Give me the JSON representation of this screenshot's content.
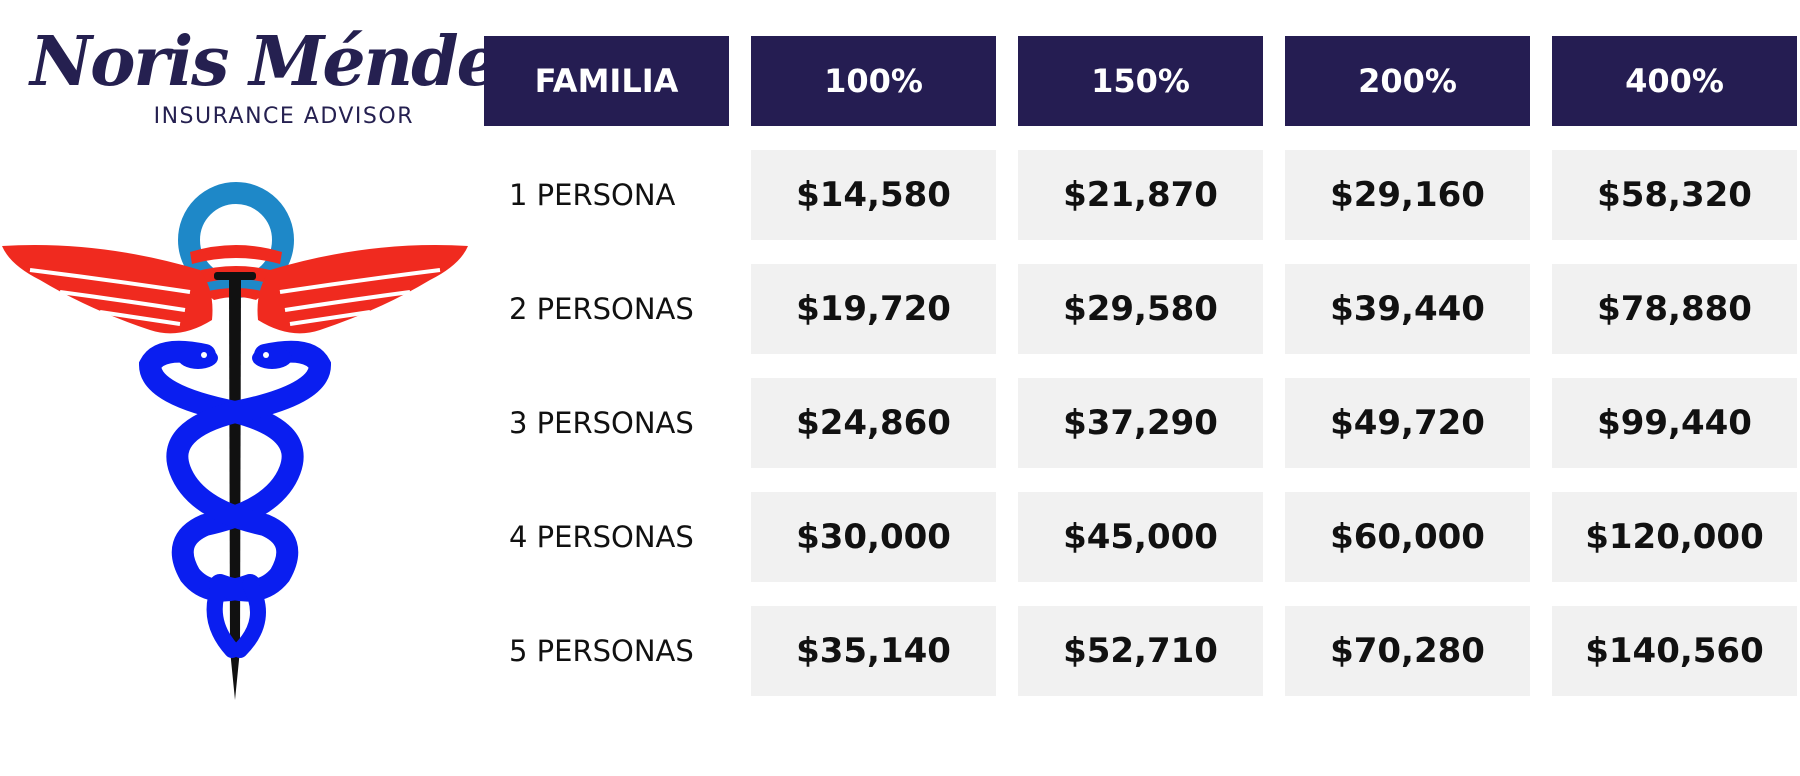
{
  "brand": {
    "name": "Noris Méndez",
    "subtitle": "INSURANCE ADVISOR",
    "emblem_icon": "caduceus-icon",
    "colors": {
      "navy": "#251d52",
      "red": "#f02a1f",
      "blue": "#0a1ef0",
      "sky": "#1e88c8"
    }
  },
  "table": {
    "headers": [
      "FAMILIA",
      "100%",
      "150%",
      "200%",
      "400%"
    ],
    "rows": [
      {
        "label": "1 PERSONA",
        "values": [
          "$14,580",
          "$21,870",
          "$29,160",
          "$58,320"
        ]
      },
      {
        "label": "2 PERSONAS",
        "values": [
          "$19,720",
          "$29,580",
          "$39,440",
          "$78,880"
        ]
      },
      {
        "label": "3 PERSONAS",
        "values": [
          "$24,860",
          "$37,290",
          "$49,720",
          "$99,440"
        ]
      },
      {
        "label": "4 PERSONAS",
        "values": [
          "$30,000",
          "$45,000",
          "$60,000",
          "$120,000"
        ]
      },
      {
        "label": "5 PERSONAS",
        "values": [
          "$35,140",
          "$52,710",
          "$70,280",
          "$140,560"
        ]
      }
    ]
  }
}
